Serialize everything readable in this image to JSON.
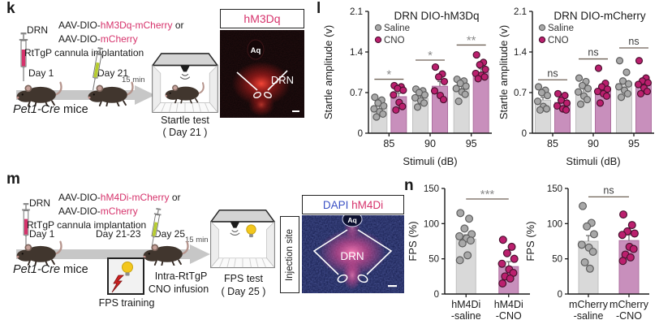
{
  "colors": {
    "accent": "#d6336c",
    "dapi_blue": "#3a50c4",
    "bar_fill": [
      "#d9d9d9",
      "#c88fbc"
    ],
    "bar_stroke": [
      "#bfbfbf",
      "#ad6f9f"
    ],
    "point_fill": [
      "#a8a8a8",
      "#bb1f6e"
    ],
    "point_stroke": [
      "#5e5e5e",
      "#4a1230"
    ],
    "sig_star": "#8a8a8a",
    "sig_ns": "#3a3a3a",
    "sig_line": "#6f6257",
    "axis": "#1a1a1a",
    "error_bar": "#666666",
    "timeline_arrow": "#c7c7c7",
    "syringe_day1": "#d6336c",
    "syringe_day2": "#b6cc2e"
  },
  "panel_k": {
    "label": "k",
    "drn": "DRN",
    "aav1_pre": "AAV-DIO-",
    "aav1_hl": "hM3Dq-mCherry",
    "aav1_suf": " or",
    "aav2_pre": "AAV-DIO-",
    "aav2_hl": "mCherry",
    "implant": "RtTgP cannula implantation",
    "day1": "Day 1",
    "day2": "Day 21",
    "duration": "15 min",
    "mice_italic": "Pet1-Cre",
    "mice_rest": " mice",
    "test_name": "Startle test",
    "test_day": "( Day 21 )"
  },
  "image_hm3dq": {
    "title": "hM3Dq",
    "aq": "Aq",
    "region": "DRN"
  },
  "panel_l": {
    "label": "l"
  },
  "panel_m": {
    "label": "m",
    "drn": "DRN",
    "aav1_pre": "AAV-DIO-",
    "aav1_hl": "hM4Di-mCherry",
    "aav1_suf": " or",
    "aav2_pre": "AAV-DIO-",
    "aav2_hl": "mCherry",
    "implant": "RtTgP cannula implantation",
    "day1": "Day 1",
    "day2": "Day 21-23",
    "day3": "Day 25",
    "duration": "15 min",
    "mice_italic": "Pet1-Cre",
    "mice_rest": " mice",
    "training_label": "FPS training",
    "infusion_line1": "Intra-RtTgP",
    "infusion_line2": "CNO infusion",
    "test_name": "FPS test",
    "test_day": "( Day 25 )"
  },
  "image_dapi": {
    "title_dapi": "DAPI",
    "title_hm4di": "hM4Di",
    "aq": "Aq",
    "region": "DRN",
    "side_label": "Injection site"
  },
  "panel_n": {
    "label": "n"
  },
  "chart_data": [
    {
      "id": "startle-hm3dq",
      "type": "grouped_bar",
      "title": "DRN DIO-hM3Dq",
      "ylabel": "Startle amplitude (v)",
      "xlabel": "Stimuli (dB)",
      "ylim": [
        0,
        2.1
      ],
      "yticks": [
        0,
        0.7,
        1.4,
        2.1
      ],
      "legend": [
        "Saline",
        "CNO"
      ],
      "categories": [
        "85",
        "90",
        "95"
      ],
      "series": [
        {
          "name": "Saline",
          "values": [
            0.43,
            0.6,
            0.77
          ],
          "errors": [
            0.05,
            0.04,
            0.05
          ],
          "points": [
            [
              0.62,
              0.57,
              0.52,
              0.47,
              0.42,
              0.37,
              0.33,
              0.28
            ],
            [
              0.76,
              0.73,
              0.7,
              0.66,
              0.61,
              0.56,
              0.52,
              0.45
            ],
            [
              0.93,
              0.9,
              0.86,
              0.81,
              0.77,
              0.71,
              0.67,
              0.55
            ]
          ]
        },
        {
          "name": "CNO",
          "values": [
            0.63,
            0.81,
            1.05
          ],
          "errors": [
            0.06,
            0.08,
            0.06
          ],
          "points": [
            [
              0.82,
              0.8,
              0.77,
              0.74,
              0.66,
              0.53,
              0.46,
              0.4
            ],
            [
              1.14,
              1.02,
              0.97,
              0.89,
              0.73,
              0.65,
              0.58
            ],
            [
              1.35,
              1.22,
              1.18,
              1.1,
              1.03,
              1.0,
              0.97,
              0.94
            ]
          ]
        }
      ],
      "sig": {
        "labels": [
          "*",
          "*",
          "**"
        ],
        "y": [
          0.93,
          1.26,
          1.52
        ]
      }
    },
    {
      "id": "startle-mcherry",
      "type": "grouped_bar",
      "title": "DRN DIO-mCherry",
      "ylabel": "Startle amplitude (v)",
      "xlabel": "Stimuli (dB)",
      "ylim": [
        0,
        2.1
      ],
      "yticks": [
        0,
        0.7,
        1.4,
        2.1
      ],
      "legend": [
        "Saline",
        "CNO"
      ],
      "categories": [
        "85",
        "90",
        "95"
      ],
      "series": [
        {
          "name": "Saline",
          "values": [
            0.57,
            0.72,
            0.85
          ],
          "errors": [
            0.05,
            0.05,
            0.07
          ],
          "points": [
            [
              0.8,
              0.74,
              0.7,
              0.65,
              0.55,
              0.46,
              0.42,
              0.4
            ],
            [
              0.95,
              0.89,
              0.82,
              0.77,
              0.71,
              0.64,
              0.58,
              0.5
            ],
            [
              1.25,
              1.05,
              0.9,
              0.85,
              0.8,
              0.74,
              0.68,
              0.62
            ]
          ]
        },
        {
          "name": "CNO",
          "values": [
            0.53,
            0.74,
            0.87
          ],
          "errors": [
            0.04,
            0.06,
            0.06
          ],
          "points": [
            [
              0.68,
              0.65,
              0.57,
              0.52,
              0.47,
              0.42,
              0.4
            ],
            [
              1.12,
              0.86,
              0.8,
              0.76,
              0.72,
              0.68,
              0.64,
              0.52
            ],
            [
              1.25,
              0.95,
              0.9,
              0.87,
              0.84,
              0.78,
              0.72,
              0.68
            ]
          ]
        }
      ],
      "sig": {
        "labels": [
          "ns",
          "ns",
          "ns"
        ],
        "y": [
          0.92,
          1.28,
          1.47
        ]
      }
    },
    {
      "id": "fps-hm4di",
      "type": "bar",
      "ylabel": "FPS (%)",
      "ylim": [
        0,
        150
      ],
      "yticks": [
        0,
        50,
        100,
        150
      ],
      "bars": [
        {
          "label_lines": [
            "hM4Di",
            "-saline"
          ],
          "group": 0,
          "value": 78,
          "error": 6,
          "points": [
            115,
            107,
            93,
            85,
            82,
            79,
            76,
            72,
            55,
            48
          ]
        },
        {
          "label_lines": [
            "hM4Di",
            "-CNO"
          ],
          "group": 1,
          "value": 39,
          "error": 7,
          "points": [
            77,
            67,
            58,
            50,
            43,
            35,
            30,
            25,
            22,
            15
          ]
        }
      ],
      "sig": {
        "label": "***",
        "y": 135
      }
    },
    {
      "id": "fps-mcherry",
      "type": "bar",
      "ylabel": "FPS (%)",
      "ylim": [
        0,
        150
      ],
      "yticks": [
        0,
        50,
        100,
        150
      ],
      "bars": [
        {
          "label_lines": [
            "mCherry",
            "-saline"
          ],
          "group": 0,
          "value": 75,
          "error": 8,
          "points": [
            125,
            101,
            96,
            85,
            70,
            66,
            60,
            45,
            36
          ]
        },
        {
          "label_lines": [
            "mCherry",
            "-CNO"
          ],
          "group": 1,
          "value": 76,
          "error": 8,
          "points": [
            113,
            98,
            89,
            86,
            84,
            67,
            64,
            56,
            52,
            47
          ]
        }
      ],
      "sig": {
        "label": "ns",
        "y": 138
      }
    }
  ]
}
